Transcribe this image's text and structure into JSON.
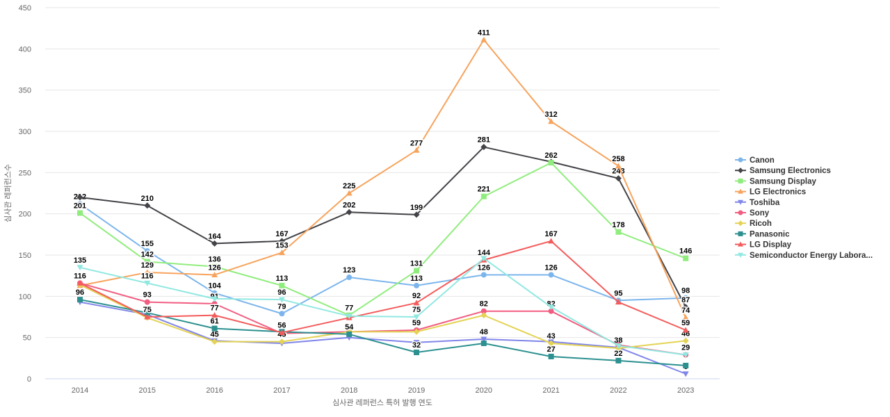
{
  "chart_data": {
    "type": "line",
    "title": "",
    "xlabel": "심사관 레퍼런스 특허 발행 연도",
    "ylabel": "심사관 레퍼런스수",
    "x": [
      2014,
      2015,
      2016,
      2017,
      2018,
      2019,
      2020,
      2021,
      2022,
      2023
    ],
    "ylim": [
      0,
      450
    ],
    "ytick_step": 50,
    "grid": true,
    "legend_position": "right",
    "colors": {
      "grid_line": "#e6e6e6",
      "axis_line": "#ccd6eb",
      "tick_text": "#666666",
      "axis_title_text": "#666666",
      "data_label_text": "#000000",
      "legend_text": "#333333",
      "background": "#ffffff"
    },
    "series": [
      {
        "name": "Canon",
        "color": "#7cb5ec",
        "marker": "circle",
        "values": [
          212,
          155,
          104,
          79,
          123,
          113,
          126,
          126,
          95,
          98
        ],
        "labels": [
          212,
          155,
          104,
          79,
          123,
          113,
          126,
          126,
          95,
          98
        ]
      },
      {
        "name": "Samsung Electronics",
        "color": "#434348",
        "marker": "diamond",
        "values": [
          220,
          210,
          164,
          167,
          202,
          199,
          281,
          263,
          243,
          87
        ],
        "labels": [
          null,
          210,
          164,
          167,
          202,
          199,
          281,
          null,
          243,
          87
        ]
      },
      {
        "name": "Samsung Display",
        "color": "#90ed7d",
        "marker": "square",
        "values": [
          201,
          142,
          136,
          113,
          77,
          131,
          221,
          262,
          178,
          146
        ],
        "labels": [
          201,
          142,
          136,
          113,
          77,
          131,
          221,
          262,
          178,
          146
        ]
      },
      {
        "name": "LG Electronics",
        "color": "#f7a35c",
        "marker": "triangle",
        "values": [
          113,
          129,
          126,
          153,
          225,
          277,
          411,
          312,
          258,
          74
        ],
        "labels": [
          null,
          129,
          126,
          153,
          225,
          277,
          411,
          312,
          258,
          74
        ]
      },
      {
        "name": "Toshiba",
        "color": "#8085e9",
        "marker": "triangle-down",
        "values": [
          93,
          78,
          46,
          43,
          50,
          44,
          48,
          45,
          38,
          6
        ],
        "labels": [
          null,
          null,
          null,
          null,
          null,
          null,
          48,
          null,
          38,
          6
        ]
      },
      {
        "name": "Sony",
        "color": "#f15c80",
        "marker": "circle",
        "values": [
          116,
          93,
          91,
          55,
          57,
          59,
          82,
          82,
          41,
          29
        ],
        "labels": [
          116,
          93,
          91,
          null,
          null,
          59,
          82,
          82,
          null,
          29
        ]
      },
      {
        "name": "Ricoh",
        "color": "#e4d354",
        "marker": "diamond",
        "values": [
          114,
          74,
          45,
          45,
          57,
          57,
          77,
          43,
          37,
          46
        ],
        "labels": [
          null,
          null,
          45,
          45,
          null,
          null,
          null,
          43,
          null,
          46
        ]
      },
      {
        "name": "Panasonic",
        "color": "#2b908f",
        "marker": "square",
        "values": [
          96,
          80,
          61,
          57,
          54,
          32,
          43,
          27,
          22,
          16
        ],
        "labels": [
          96,
          null,
          61,
          null,
          54,
          32,
          null,
          27,
          22,
          null
        ]
      },
      {
        "name": "LG Display",
        "color": "#f45b5b",
        "marker": "triangle",
        "values": [
          116,
          75,
          77,
          56,
          74,
          92,
          144,
          167,
          93,
          59
        ],
        "labels": [
          116,
          75,
          77,
          56,
          null,
          92,
          144,
          167,
          null,
          59
        ]
      },
      {
        "name": "Semiconductor Energy Labora...",
        "color": "#91e8e1",
        "marker": "triangle-down",
        "values": [
          135,
          116,
          97,
          96,
          76,
          75,
          146,
          87,
          40,
          29
        ],
        "labels": [
          135,
          116,
          null,
          96,
          null,
          75,
          null,
          null,
          null,
          null
        ]
      }
    ]
  }
}
